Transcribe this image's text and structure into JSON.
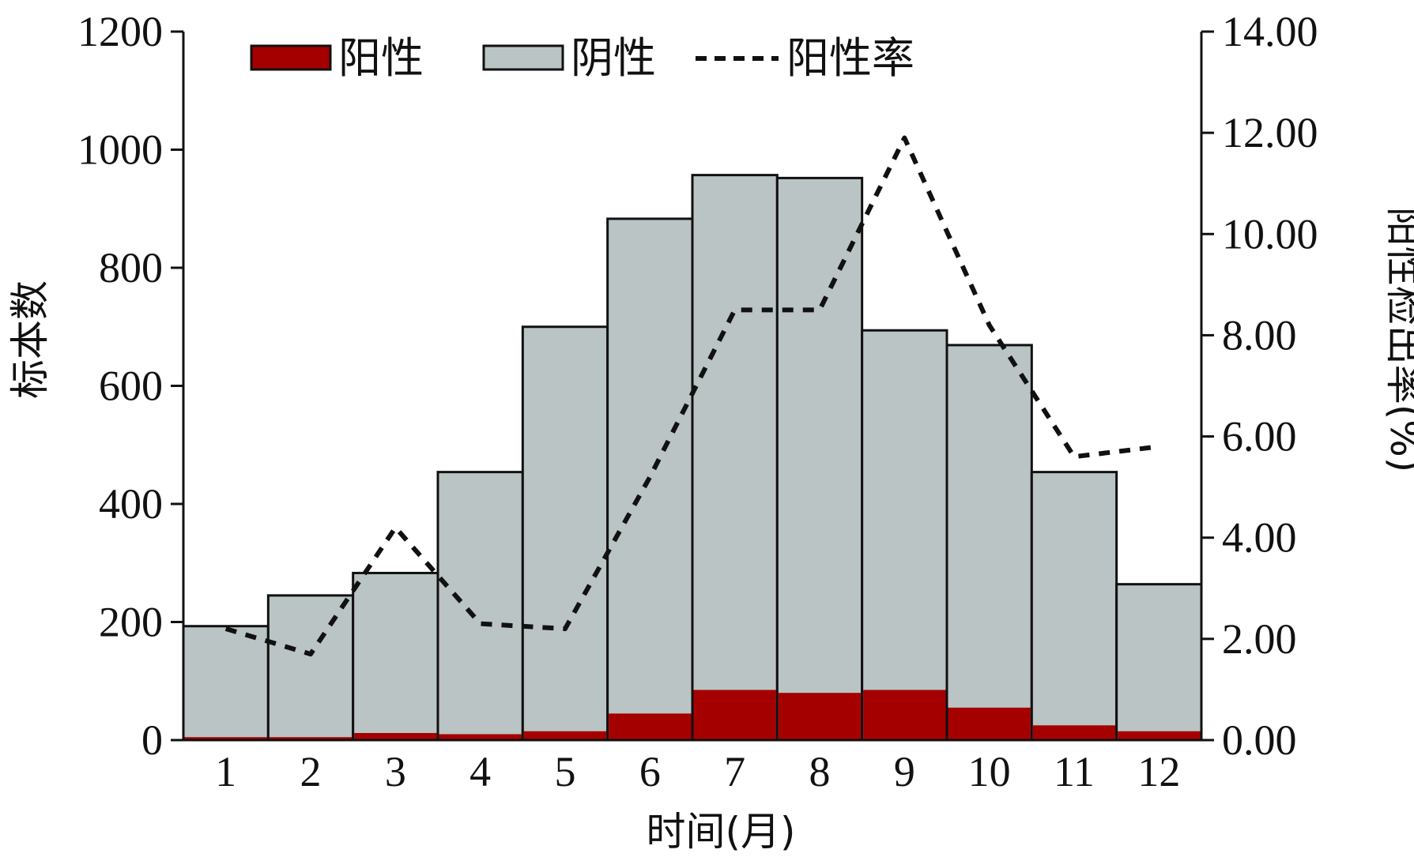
{
  "chart_data": {
    "type": "bar",
    "stacked": true,
    "categories": [
      "1",
      "2",
      "3",
      "4",
      "5",
      "6",
      "7",
      "8",
      "9",
      "10",
      "11",
      "12"
    ],
    "series": [
      {
        "name": "阳性",
        "kind": "bar",
        "axis": "left",
        "color": "#a50000",
        "values": [
          5,
          5,
          12,
          10,
          15,
          45,
          85,
          80,
          85,
          55,
          25,
          15
        ]
      },
      {
        "name": "阴性",
        "kind": "bar",
        "axis": "left",
        "color": "#bac4c4",
        "values": [
          188,
          240,
          271,
          444,
          685,
          838,
          872,
          872,
          609,
          614,
          429,
          249
        ]
      },
      {
        "name": "阳性率",
        "kind": "line",
        "axis": "right",
        "style": "dotted",
        "color": "#111111",
        "values": [
          2.2,
          1.7,
          4.2,
          2.3,
          2.2,
          5.2,
          8.5,
          8.5,
          11.9,
          8.2,
          5.6,
          5.8
        ]
      }
    ],
    "xlabel": "时间(月)",
    "ylabel": "标本数",
    "y2label": "阳性检出率(%)",
    "ylim": [
      0,
      1200
    ],
    "y2lim": [
      0,
      14
    ],
    "yticks": [
      "0",
      "200",
      "400",
      "600",
      "800",
      "1000",
      "1200"
    ],
    "y2ticks": [
      "0.00",
      "2.00",
      "4.00",
      "6.00",
      "8.00",
      "10.00",
      "12.00",
      "14.00"
    ],
    "legend": {
      "placement": "top-left",
      "items": [
        {
          "label": "阳性",
          "swatch": "bar",
          "color": "#a50000"
        },
        {
          "label": "阴性",
          "swatch": "bar",
          "color": "#bac4c4"
        },
        {
          "label": "阳性率",
          "swatch": "dotted-line",
          "color": "#111111"
        }
      ]
    },
    "grid": false
  }
}
